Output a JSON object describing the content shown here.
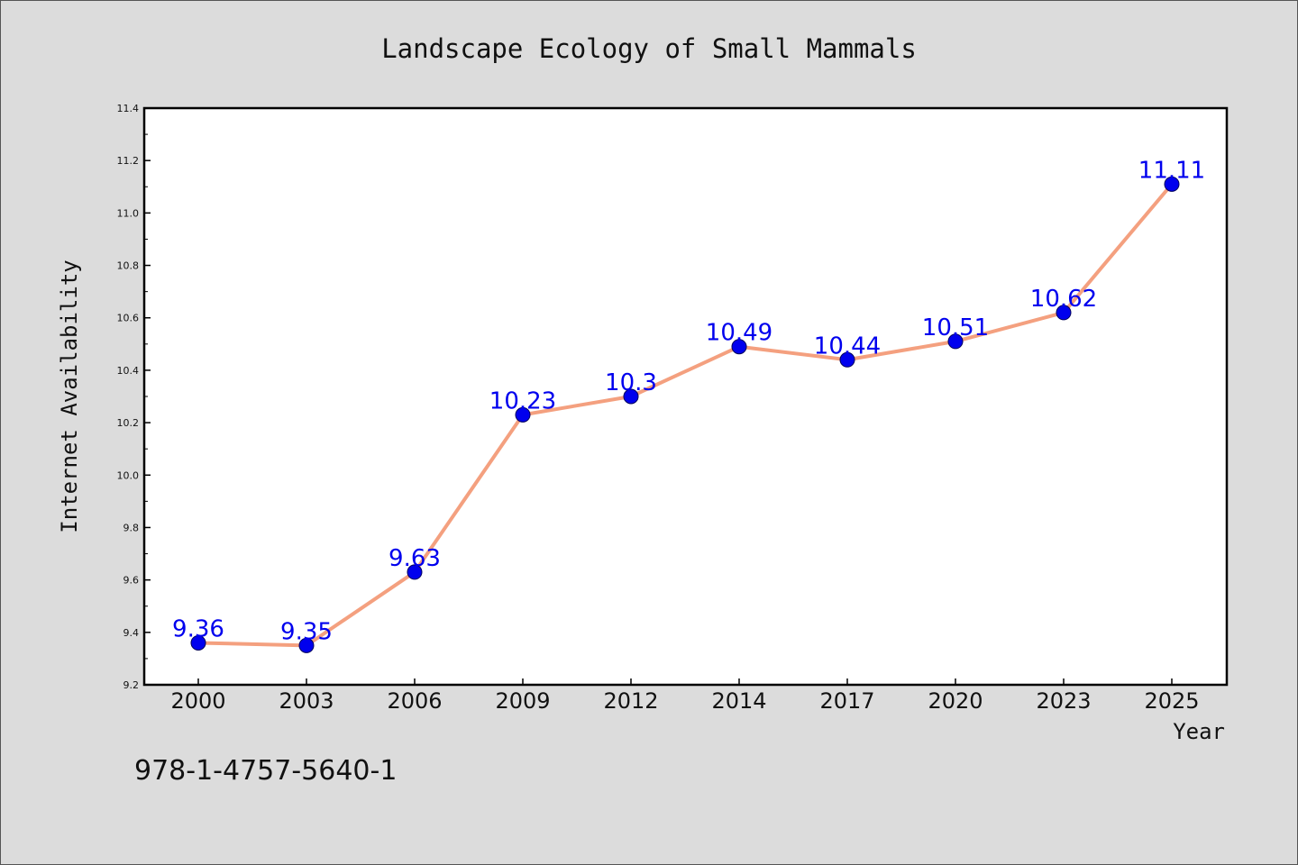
{
  "chart_data": {
    "type": "line",
    "title": "Landscape Ecology of Small Mammals",
    "xlabel": "Year",
    "ylabel": "Internet Availability",
    "categories": [
      "2000",
      "2003",
      "2006",
      "2009",
      "2012",
      "2014",
      "2017",
      "2020",
      "2023",
      "2025"
    ],
    "series": [
      {
        "values": [
          9.36,
          9.35,
          9.63,
          10.23,
          10.3,
          10.49,
          10.44,
          10.51,
          10.62,
          11.11
        ]
      }
    ],
    "data_labels": [
      "9.36",
      "9.35",
      "9.63",
      "10.23",
      "10.3",
      "10.49",
      "10.44",
      "10.51",
      "10.62",
      "11.11"
    ],
    "ylim": [
      9.2,
      11.4
    ],
    "yticks": [
      "9.2",
      "9.4",
      "9.6",
      "9.8",
      "10.0",
      "10.2",
      "10.4",
      "10.6",
      "10.8",
      "11.0",
      "11.2",
      "11.4"
    ],
    "grid": false,
    "legend": "none",
    "line_color": "#f4a07f",
    "marker_color": "#0000ee",
    "label_color": "#0000ee"
  },
  "footer": {
    "code": "978-1-4757-5640-1"
  }
}
